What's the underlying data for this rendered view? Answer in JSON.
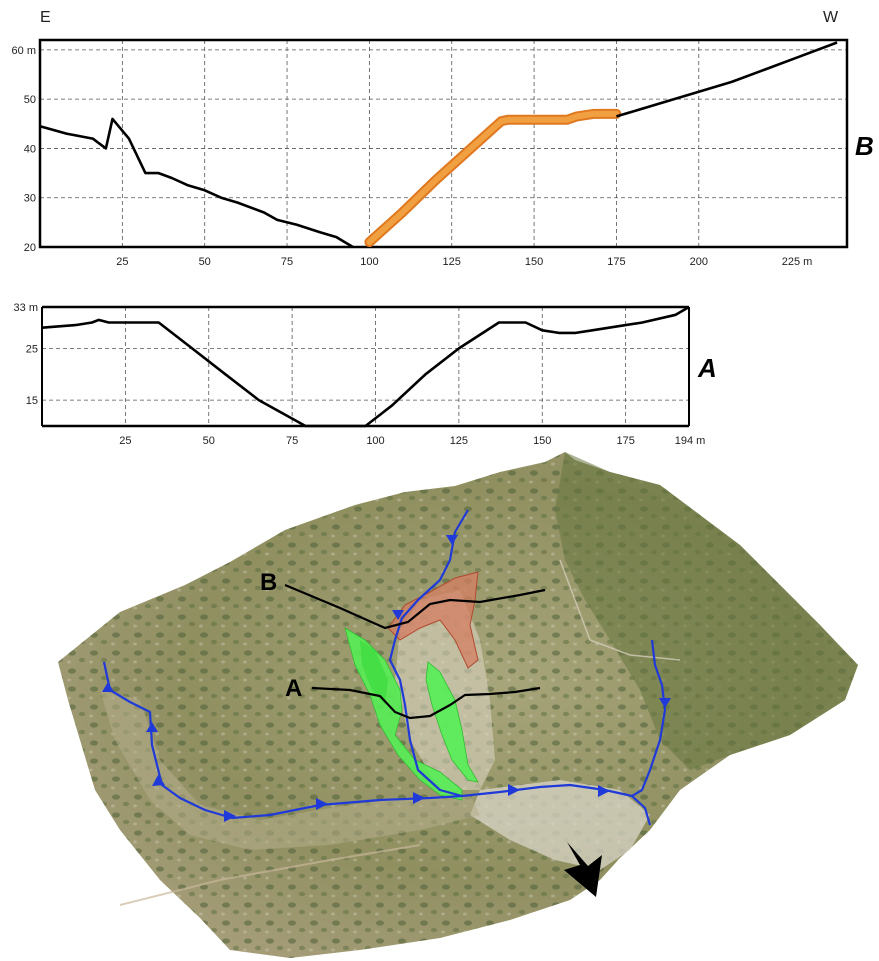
{
  "profile_B": {
    "label": "B",
    "left_direction": "E",
    "right_direction": "W",
    "colors": {
      "profile": "#000000",
      "highlight": "#f0a040",
      "highlight_edge": "#e07820"
    },
    "chart_data": {
      "type": "line",
      "xlim": [
        0,
        245
      ],
      "ylim": [
        20,
        62
      ],
      "x_ticks": [
        25,
        50,
        75,
        100,
        125,
        150,
        175,
        200
      ],
      "x_tick_labels": [
        "25",
        "50",
        "75",
        "100",
        "125",
        "150",
        "175",
        "200"
      ],
      "x_end_label": "225 m",
      "y_ticks": [
        20,
        30,
        40,
        50,
        60
      ],
      "y_tick_labels": [
        "20",
        "30",
        "40",
        "50",
        "60 m"
      ],
      "grid": true,
      "series": [
        {
          "role": "profile",
          "x": [
            0,
            8,
            16,
            20,
            22,
            27,
            32,
            36,
            40,
            45,
            50,
            55,
            60,
            68,
            72,
            78,
            85,
            90,
            95
          ],
          "y": [
            44.5,
            43,
            42,
            40,
            46,
            42,
            35,
            35,
            34,
            32.5,
            31.5,
            30,
            29,
            27,
            25.5,
            24.5,
            23,
            22,
            20
          ]
        },
        {
          "role": "highlight",
          "x": [
            100,
            110,
            120,
            130,
            140,
            142,
            150,
            160,
            163,
            168,
            175
          ],
          "y": [
            21,
            27,
            33.5,
            39.5,
            45.5,
            45.8,
            45.8,
            45.8,
            46.5,
            47,
            47
          ]
        },
        {
          "role": "profile",
          "x": [
            175,
            180,
            190,
            200,
            210,
            220,
            230,
            242
          ],
          "y": [
            46.5,
            47.5,
            49.5,
            51.5,
            53.5,
            56,
            58.5,
            61.5
          ]
        }
      ]
    }
  },
  "profile_A": {
    "label": "A",
    "colors": {
      "profile": "#000000"
    },
    "chart_data": {
      "type": "line",
      "xlim": [
        0,
        194
      ],
      "ylim": [
        10,
        33
      ],
      "x_ticks": [
        25,
        50,
        75,
        100,
        125,
        150,
        175
      ],
      "x_tick_labels": [
        "25",
        "50",
        "75",
        "100",
        "125",
        "150",
        "175"
      ],
      "x_end_label": "194 m",
      "y_ticks": [
        15,
        25,
        33
      ],
      "y_tick_labels": [
        "15",
        "25",
        "33 m"
      ],
      "grid": true,
      "series": [
        {
          "role": "profile",
          "x": [
            0,
            10,
            15,
            17,
            20,
            25,
            35,
            45,
            55,
            65,
            79,
            85,
            97,
            105,
            115,
            125,
            137,
            145,
            150,
            155,
            160,
            165,
            170,
            180,
            190,
            194
          ],
          "y": [
            29,
            29.5,
            30,
            30.5,
            30,
            30,
            30,
            25,
            20,
            15,
            10,
            10,
            10,
            14,
            20,
            25,
            30,
            30,
            28.5,
            28,
            28,
            28.5,
            29,
            30,
            31.5,
            33
          ]
        }
      ]
    }
  },
  "terrain": {
    "label_A": "A",
    "label_B": "B",
    "colors": {
      "terrain_base": "#9b9a6a",
      "vegetation": "#6e7e48",
      "stream": "#1f3ad8",
      "green_zone": "#55ee55",
      "red_zone": "#d68a6e",
      "section_line": "#000000",
      "north_arrow": "#000000"
    }
  }
}
